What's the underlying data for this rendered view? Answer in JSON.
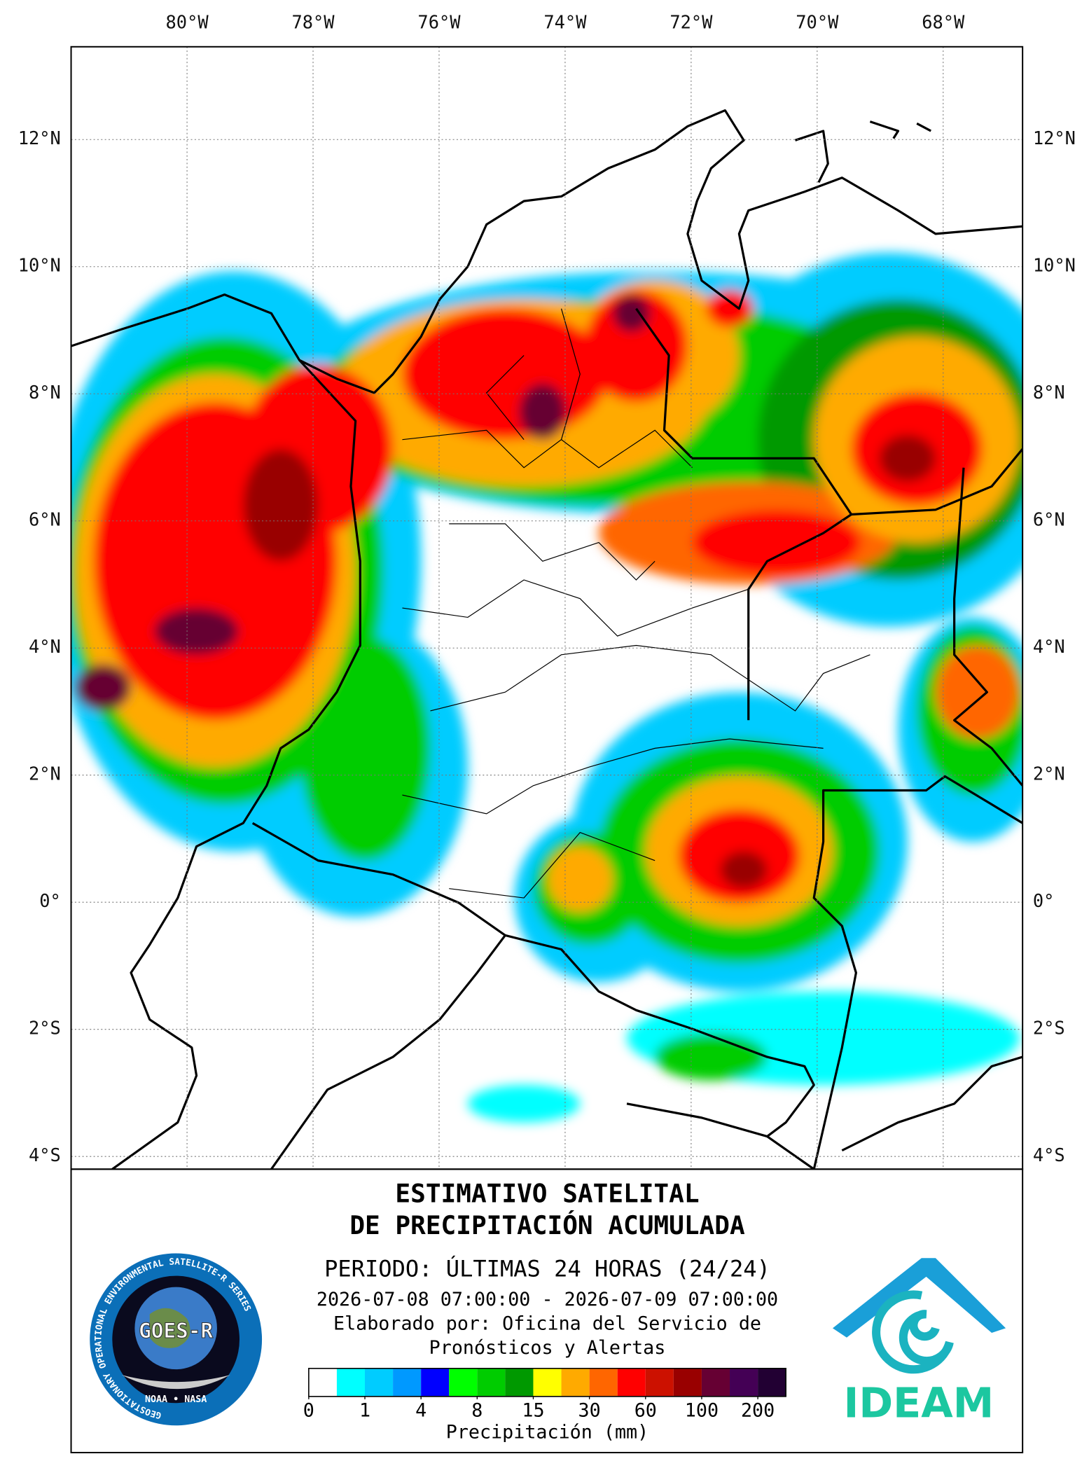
{
  "map": {
    "lonlim": [
      -81.84,
      -66.74
    ],
    "latlim": [
      -4.2,
      13.46
    ],
    "lon_ticks": [
      {
        "value": -80,
        "label": "80°W"
      },
      {
        "value": -78,
        "label": "78°W"
      },
      {
        "value": -76,
        "label": "76°W"
      },
      {
        "value": -74,
        "label": "74°W"
      },
      {
        "value": -72,
        "label": "72°W"
      },
      {
        "value": -70,
        "label": "70°W"
      },
      {
        "value": -68,
        "label": "68°W"
      }
    ],
    "lat_ticks": [
      {
        "value": 12,
        "label": "12°N"
      },
      {
        "value": 10,
        "label": "10°N"
      },
      {
        "value": 8,
        "label": "8°N"
      },
      {
        "value": 6,
        "label": "6°N"
      },
      {
        "value": 4,
        "label": "4°N"
      },
      {
        "value": 2,
        "label": "2°N"
      },
      {
        "value": 0,
        "label": "0°"
      },
      {
        "value": -2,
        "label": "2°S"
      },
      {
        "value": -4,
        "label": "4°S"
      }
    ]
  },
  "title": [
    "ESTIMATIVO SATELITAL",
    "DE PRECIPITACIÓN ACUMULADA"
  ],
  "period": "PERIODO: ÚLTIMAS 24 HORAS (24/24)",
  "date_range": "2026-07-08 07:00:00 - 2026-07-09 07:00:00",
  "credit": [
    "Elaborado por: Oficina del Servicio de",
    "Pronósticos y Alertas"
  ],
  "legend": {
    "colors": [
      "#ffffff",
      "#00ffff",
      "#00ccff",
      "#0099ff",
      "#0000ff",
      "#00ff00",
      "#00cc00",
      "#009900",
      "#ffff00",
      "#ffaa00",
      "#ff6600",
      "#ff0000",
      "#cc1100",
      "#990000",
      "#660033",
      "#440055",
      "#220033"
    ],
    "ticks": [
      0,
      1,
      4,
      8,
      15,
      30,
      60,
      100,
      200
    ],
    "label": "Precipitación (mm)"
  },
  "logos": {
    "goes_ring": "GEOSTATIONARY OPERATIONAL ENVIRONMENTAL SATELLITE-R SERIES",
    "goes": "GOES-R",
    "goes_footer": "NOAA • NASA",
    "ideam": "IDEAM"
  }
}
